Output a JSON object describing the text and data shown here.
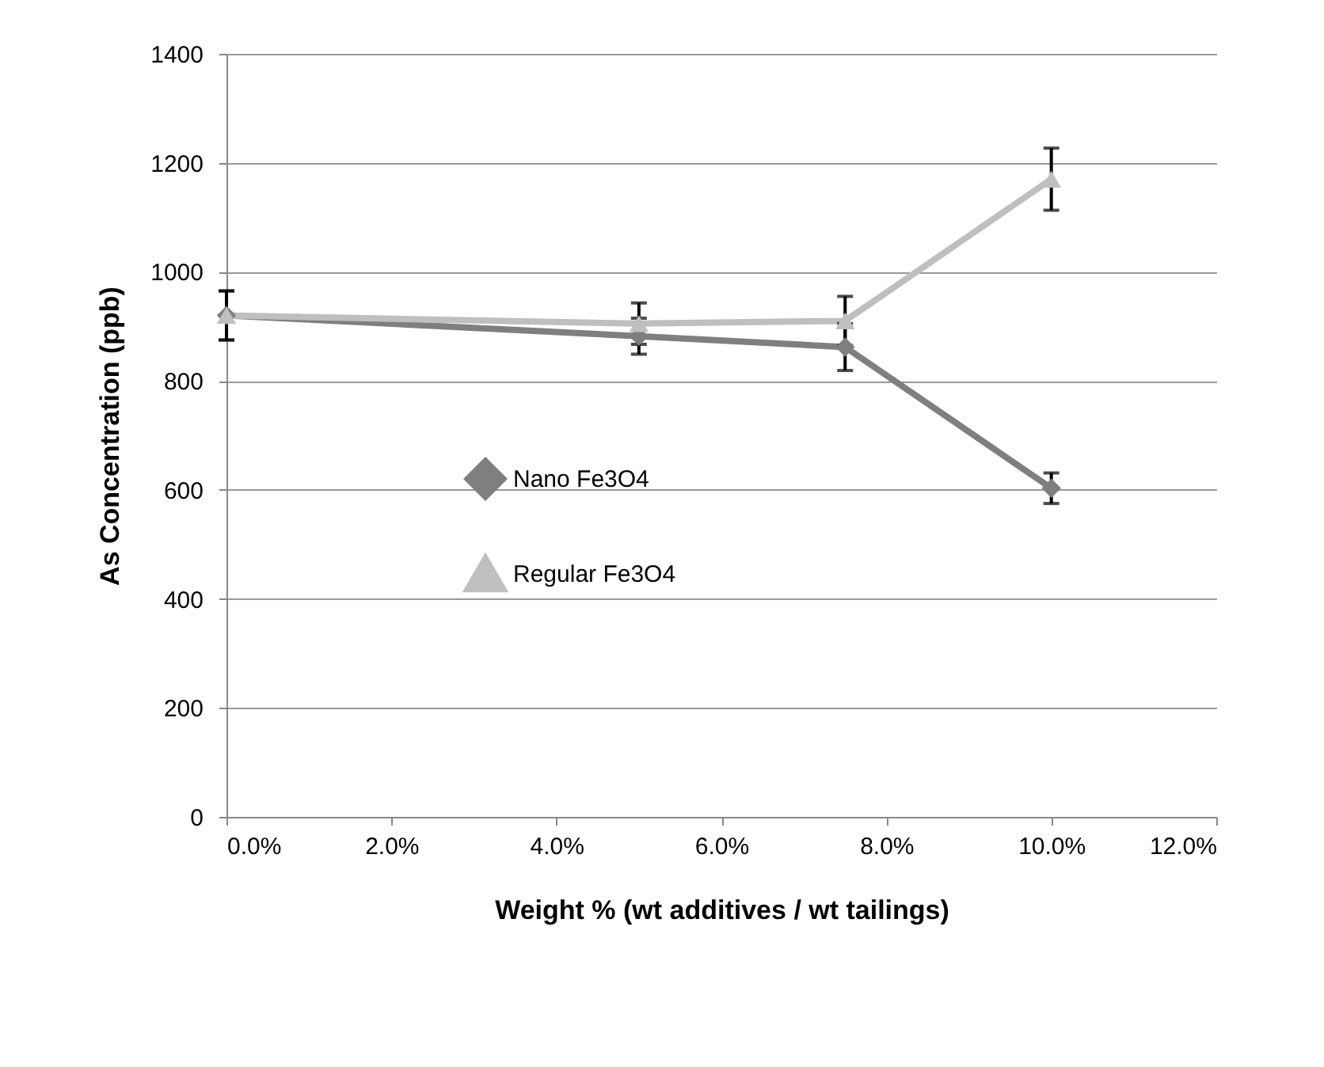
{
  "chart_data": {
    "type": "line",
    "xlabel": "Weight % (wt additives / wt tailings)",
    "ylabel": "As Concentration (ppb)",
    "xlim": [
      0,
      12
    ],
    "xticks": [
      {
        "value": 0,
        "label": "0.0%"
      },
      {
        "value": 2,
        "label": "2.0%"
      },
      {
        "value": 4,
        "label": "4.0%"
      },
      {
        "value": 6,
        "label": "6.0%"
      },
      {
        "value": 8,
        "label": "8.0%"
      },
      {
        "value": 10,
        "label": "10.0%"
      },
      {
        "value": 12,
        "label": "12.0%"
      }
    ],
    "ylim": [
      0,
      1400
    ],
    "yticks": [
      0,
      200,
      400,
      600,
      800,
      1000,
      1200,
      1400
    ],
    "grid": "y",
    "legend": "center left",
    "line_style": "solid",
    "x": [
      0,
      5,
      7.5,
      10
    ],
    "series": [
      {
        "name": "Nano Fe3O4",
        "color": "#7f7f7f",
        "marker": "diamond",
        "values": [
          920,
          882,
          862,
          603
        ],
        "errors": [
          45,
          33,
          43,
          28
        ]
      },
      {
        "name": "Regular Fe3O4",
        "color": "#bfbfbf",
        "marker": "triangle",
        "values": [
          920,
          905,
          910,
          1170
        ],
        "errors": [
          45,
          38,
          45,
          57
        ]
      }
    ]
  }
}
